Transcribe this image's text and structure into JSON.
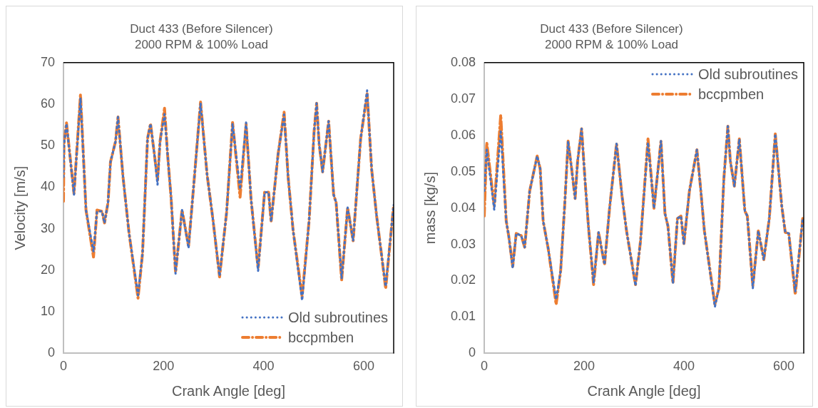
{
  "chart_data": [
    {
      "type": "line",
      "title": "Duct 433 (Before Silencer)",
      "subtitle": "2000 RPM & 100% Load",
      "xlabel": "Crank Angle [deg]",
      "ylabel": "Velocity [m/s]",
      "xlim": [
        0,
        660
      ],
      "xticks": [
        0,
        200,
        400,
        600
      ],
      "ylim": [
        0,
        70
      ],
      "yticks": [
        0,
        10,
        20,
        30,
        40,
        50,
        60,
        70
      ],
      "grid": false,
      "legend": "bottom right",
      "marker": "none",
      "x": [
        0,
        1,
        6,
        21,
        34,
        45,
        60,
        67,
        77,
        82,
        89,
        94,
        104,
        109,
        119,
        131,
        149,
        158,
        168,
        174,
        181,
        188,
        193,
        202,
        208,
        215,
        224,
        237,
        250,
        260,
        274,
        287,
        299,
        312,
        326,
        338,
        353,
        365,
        375,
        389,
        402,
        410,
        415,
        429,
        441,
        449,
        459,
        477,
        491,
        501,
        506,
        511,
        518,
        530,
        540,
        545,
        556,
        568,
        579,
        594,
        607,
        616,
        626,
        636,
        644,
        660
      ],
      "series": [
        {
          "name": "Old subroutines",
          "color": "#4472c4",
          "line_style": "dotted",
          "values": [
            42.5,
            50.4,
            55.3,
            38.2,
            61.5,
            34.5,
            24.5,
            34.2,
            34.2,
            31.4,
            36.3,
            46.1,
            51,
            56.9,
            42.5,
            29,
            14,
            24.1,
            51.7,
            55.3,
            48.6,
            40.6,
            51,
            57.6,
            48,
            37.6,
            19.2,
            34.5,
            25.3,
            40,
            60.2,
            43.1,
            32,
            18.6,
            33.9,
            55.3,
            39.5,
            55.6,
            37,
            19.8,
            38.8,
            38.8,
            31.7,
            48,
            57.5,
            42.5,
            29.6,
            12.7,
            32,
            53.5,
            60.2,
            50.4,
            43.7,
            55.9,
            38.2,
            36.3,
            18,
            35.1,
            27.1,
            51.7,
            63.3,
            44.3,
            33,
            23.5,
            16.1,
            35.7
          ]
        },
        {
          "name": "bccpmben",
          "color": "#ed7d31",
          "line_style": "dashed",
          "values": [
            36.6,
            50.4,
            55.5,
            38.5,
            62.3,
            34.5,
            23.2,
            34.5,
            34.2,
            31.4,
            36.3,
            46.1,
            51,
            56.9,
            42.5,
            29,
            13.3,
            24.1,
            51.7,
            55.3,
            48.6,
            41.7,
            51,
            59,
            48,
            37.6,
            19.5,
            34.5,
            25.8,
            40,
            60.5,
            43.1,
            32,
            18.4,
            33.9,
            55.6,
            37.6,
            55.2,
            37,
            20.5,
            38.8,
            38.8,
            31.7,
            48,
            58.1,
            42.5,
            29.6,
            13.7,
            32,
            53.5,
            60.2,
            50.4,
            43.7,
            55.9,
            38.2,
            36.3,
            17.6,
            35.1,
            27.1,
            51.7,
            62.5,
            44.3,
            33,
            23.5,
            15.6,
            35.7
          ]
        }
      ]
    },
    {
      "type": "line",
      "title": "Duct 433 (Before Silencer)",
      "subtitle": "2000 RPM & 100% Load",
      "xlabel": "Crank Angle [deg]",
      "ylabel": "mass [kg/s]",
      "xlim": [
        0,
        640
      ],
      "xticks": [
        0,
        200,
        400,
        600
      ],
      "ylim": [
        0,
        0.08
      ],
      "yticks": [
        0,
        0.01,
        0.02,
        0.03,
        0.04,
        0.05,
        0.06,
        0.07,
        0.08
      ],
      "grid": false,
      "legend": "top right",
      "marker": "none",
      "x": [
        0,
        5,
        20,
        33,
        44,
        49,
        57,
        64,
        74,
        81,
        91,
        106,
        112,
        118,
        128,
        144,
        153,
        161,
        168,
        175,
        182,
        187,
        195,
        202,
        209,
        219,
        229,
        241,
        251,
        265,
        276,
        285,
        303,
        313,
        328,
        340,
        354,
        362,
        368,
        378,
        387,
        394,
        400,
        411,
        426,
        433,
        441,
        462,
        470,
        480,
        488,
        493,
        501,
        511,
        522,
        527,
        538,
        549,
        560,
        571,
        583,
        596,
        603,
        610,
        623,
        638
      ],
      "series": [
        {
          "name": "Old subroutines",
          "color": "#4472c4",
          "line_style": "dotted",
          "values": [
            0.0447,
            0.056,
            0.0395,
            0.061,
            0.0364,
            0.0323,
            0.0234,
            0.033,
            0.0324,
            0.0292,
            0.0447,
            0.0543,
            0.0508,
            0.0364,
            0.0289,
            0.0148,
            0.0227,
            0.0405,
            0.0584,
            0.0508,
            0.0426,
            0.0529,
            0.0618,
            0.0474,
            0.0344,
            0.0195,
            0.0333,
            0.0244,
            0.0399,
            0.0577,
            0.0433,
            0.0337,
            0.0186,
            0.0309,
            0.058,
            0.0399,
            0.0584,
            0.0385,
            0.035,
            0.0193,
            0.0371,
            0.0378,
            0.0302,
            0.0447,
            0.056,
            0.046,
            0.0337,
            0.0128,
            0.0179,
            0.0481,
            0.0625,
            0.0529,
            0.046,
            0.059,
            0.0392,
            0.0378,
            0.0179,
            0.0337,
            0.0258,
            0.0371,
            0.0604,
            0.0405,
            0.0333,
            0.033,
            0.017,
            0.0371
          ]
        },
        {
          "name": "bccpmben",
          "color": "#ed7d31",
          "line_style": "dashed",
          "values": [
            0.0378,
            0.058,
            0.0405,
            0.0656,
            0.0364,
            0.0323,
            0.0239,
            0.033,
            0.0324,
            0.0292,
            0.0447,
            0.0543,
            0.0508,
            0.0364,
            0.0289,
            0.0135,
            0.0227,
            0.0405,
            0.0584,
            0.0508,
            0.0426,
            0.0529,
            0.0618,
            0.0474,
            0.0344,
            0.0189,
            0.0333,
            0.0244,
            0.0399,
            0.0577,
            0.0433,
            0.0337,
            0.0189,
            0.0309,
            0.059,
            0.0399,
            0.0584,
            0.0385,
            0.035,
            0.0193,
            0.0371,
            0.0378,
            0.0302,
            0.0447,
            0.056,
            0.046,
            0.0337,
            0.0135,
            0.0179,
            0.0481,
            0.0625,
            0.0529,
            0.046,
            0.059,
            0.0392,
            0.0378,
            0.0186,
            0.0337,
            0.0258,
            0.0371,
            0.0604,
            0.0405,
            0.0333,
            0.033,
            0.0162,
            0.0371
          ]
        }
      ]
    }
  ]
}
